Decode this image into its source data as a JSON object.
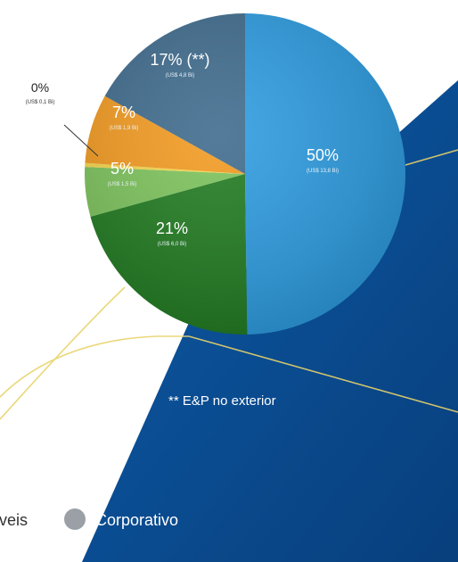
{
  "chart_data": {
    "type": "pie",
    "slices": [
      {
        "label": "50%",
        "sub": "(US$ 13,8 Bi)",
        "value": 50,
        "color": "#2b9be0"
      },
      {
        "label": "21%",
        "sub": "(US$ 6,0 Bi)",
        "value": 21,
        "color": "#1f7a1f"
      },
      {
        "label": "5%",
        "sub": "(US$ 1,5 Bi)",
        "value": 5,
        "color": "#7cc35a"
      },
      {
        "label": "0%",
        "sub": "(US$ 0,1 Bi)",
        "value": 0.4,
        "color": "#f6d64a"
      },
      {
        "label": "7%",
        "sub": "(US$ 1,9 Bi)",
        "value": 7,
        "color": "#f39a1e"
      },
      {
        "label": "17% (**)",
        "sub": "(US$ 4,8 Bi)",
        "value": 17,
        "color": "#3d6a8c"
      }
    ]
  },
  "note": "** E&P no exterior",
  "legend": {
    "partial_label": "veis",
    "corporativo_label": "Corporativo",
    "corporativo_color": "#9aa0a6"
  },
  "colors": {
    "panel": "#0a4f96",
    "accent_line": "#e8d36a"
  }
}
